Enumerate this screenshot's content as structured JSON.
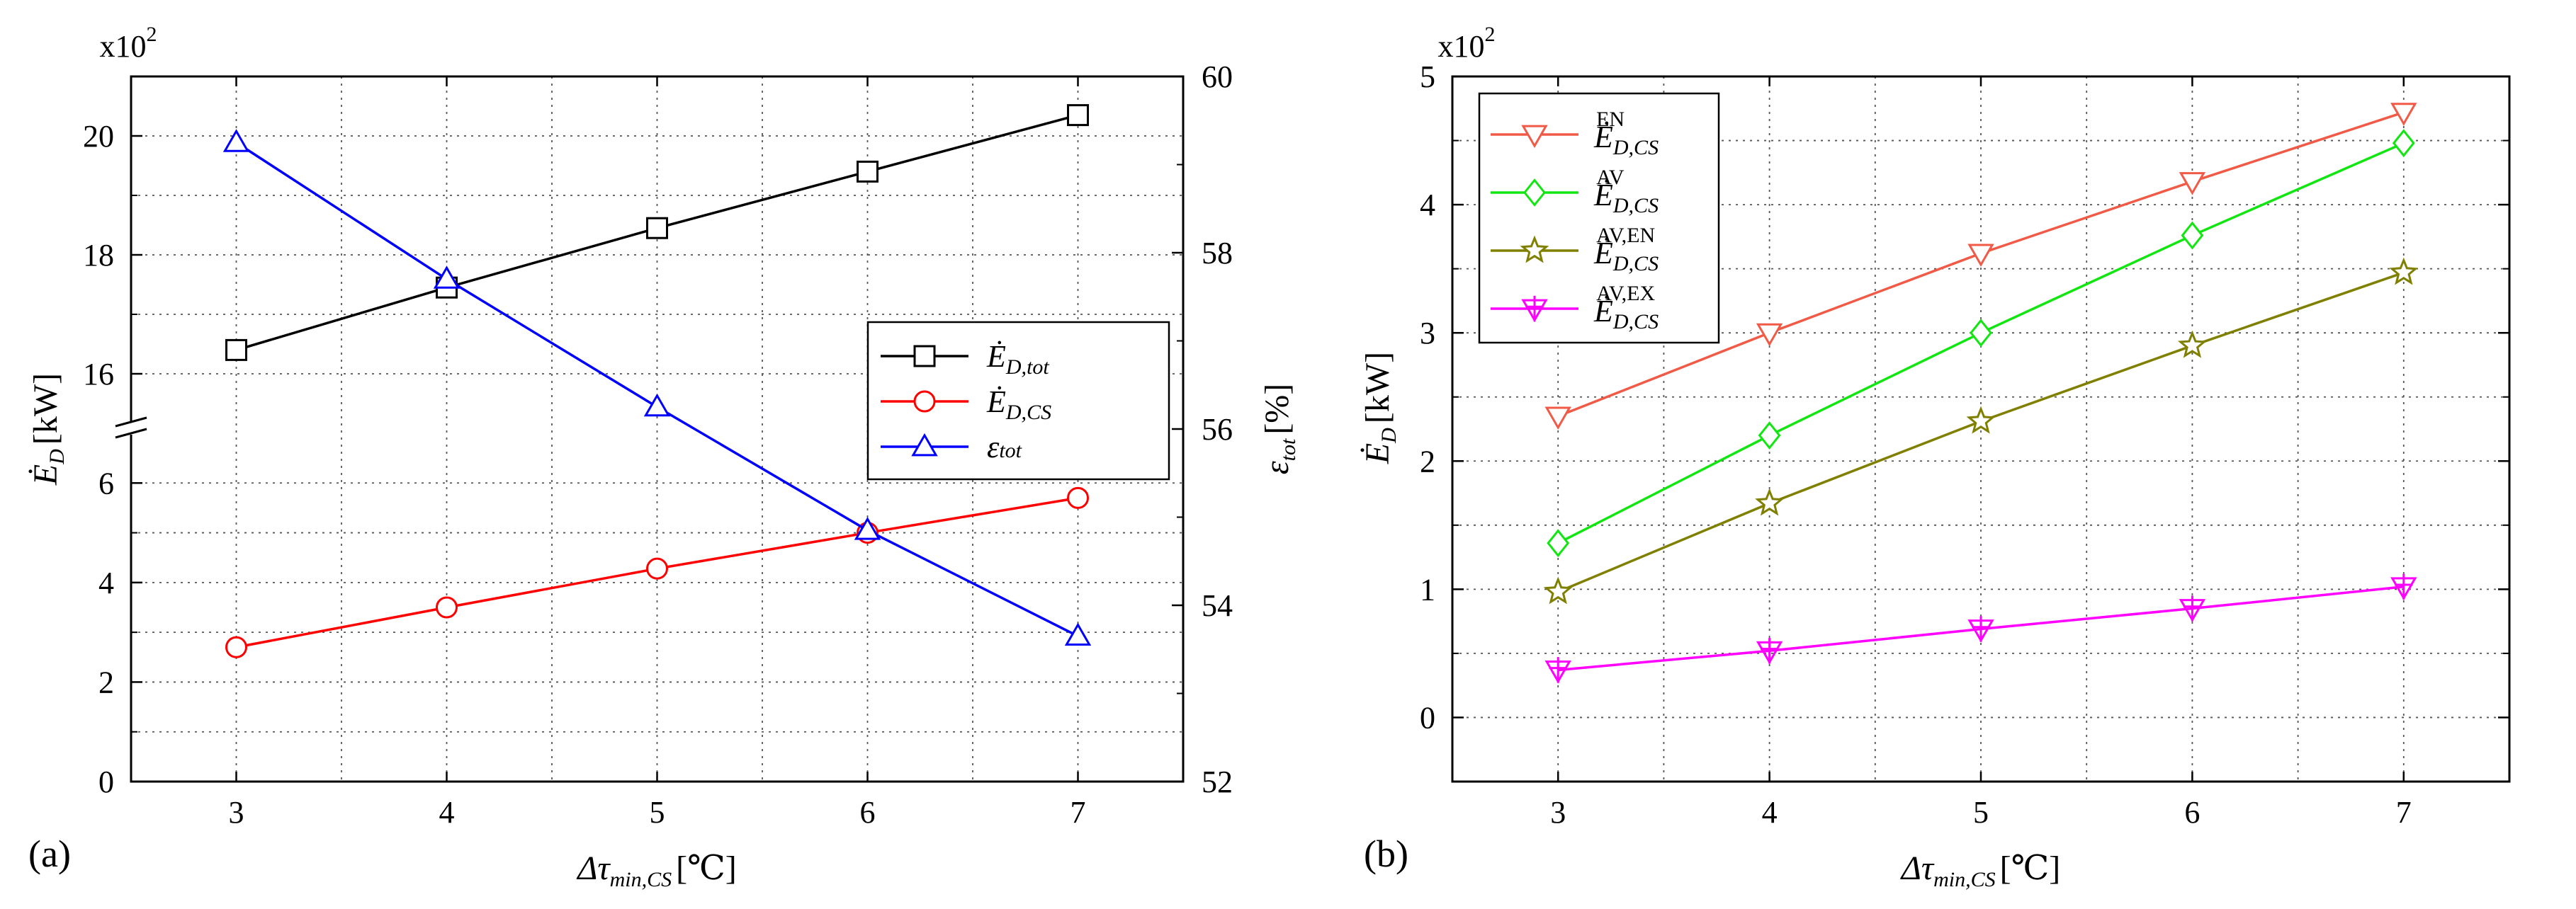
{
  "figure": {
    "panels": [
      "(a)",
      "(b)"
    ]
  },
  "chart_data": [
    {
      "type": "line",
      "panel_label": "(a)",
      "x": [
        3,
        4,
        5,
        6,
        7
      ],
      "x_label": {
        "prefix": "Δτ",
        "subscript": "min,CS",
        "unit": "[℃]"
      },
      "xlim": [
        2.5,
        7.5
      ],
      "xticks": [
        "3",
        "4",
        "5",
        "6",
        "7"
      ],
      "y_left": {
        "label": {
          "base": "Ė",
          "subscript": "D",
          "unit": "[kW]"
        },
        "multiplier": {
          "base": "x10",
          "exp": "2"
        },
        "broken": true,
        "lower_range": [
          0,
          7
        ],
        "upper_range": [
          15,
          21
        ],
        "lower_ticks": [
          "0",
          "2",
          "4",
          "6"
        ],
        "upper_ticks": [
          "16",
          "18",
          "20"
        ]
      },
      "y_right": {
        "label": {
          "base": "ε",
          "subscript": "tot",
          "unit": "[%]"
        },
        "range": [
          52,
          60
        ],
        "ticks": [
          "52",
          "54",
          "56",
          "58",
          "60"
        ]
      },
      "series": [
        {
          "name": "Ė_D,tot",
          "base": "Ė",
          "sub_regular": "D,",
          "sub_italic": "tot",
          "color": "#000000",
          "marker": "square",
          "axis": "left-upper",
          "values": [
            16.4,
            17.45,
            18.45,
            19.4,
            20.35
          ]
        },
        {
          "name": "Ė_D,CS",
          "base": "Ė",
          "sub_regular": "D,",
          "sub_italic": "CS",
          "color": "#ff0000",
          "marker": "circle",
          "axis": "left-lower",
          "values": [
            2.7,
            3.5,
            4.28,
            5.0,
            5.7
          ]
        },
        {
          "name": "ε_tot",
          "base": "ε",
          "sub_regular": "",
          "sub_italic": "tot",
          "color": "#0000ff",
          "marker": "triangle-up",
          "axis": "right",
          "values": [
            59.25,
            57.7,
            56.25,
            54.85,
            53.65
          ]
        }
      ],
      "legend_position": "center-right",
      "grid": true
    },
    {
      "type": "line",
      "panel_label": "(b)",
      "x": [
        3,
        4,
        5,
        6,
        7
      ],
      "x_label": {
        "prefix": "Δτ",
        "subscript": "min,CS",
        "unit": "[℃]"
      },
      "xlim": [
        2.5,
        7.5
      ],
      "xticks": [
        "3",
        "4",
        "5",
        "6",
        "7"
      ],
      "y_left": {
        "label": {
          "base": "Ė",
          "subscript": "D",
          "unit": "[kW]"
        },
        "multiplier": {
          "base": "x10",
          "exp": "2"
        },
        "range": [
          -0.5,
          5
        ],
        "ticks": [
          "0",
          "1",
          "2",
          "3",
          "4",
          "5"
        ]
      },
      "series": [
        {
          "name": "Ė_D,CS^EN",
          "sup": "EN",
          "color": "#f05a46",
          "marker": "triangle-down",
          "values": [
            2.35,
            3.0,
            3.62,
            4.18,
            4.72
          ]
        },
        {
          "name": "Ė_D,CS^AV",
          "sup": "AV",
          "color": "#11e611",
          "marker": "diamond",
          "values": [
            1.36,
            2.2,
            3.0,
            3.76,
            4.48
          ]
        },
        {
          "name": "Ė_D,CS^AV,EN",
          "sup": "AV,EN",
          "color": "#808000",
          "marker": "star",
          "values": [
            0.98,
            1.67,
            2.31,
            2.9,
            3.47
          ]
        },
        {
          "name": "Ė_D,CS^AV,EX",
          "sup": "AV,EX",
          "color": "#ff00ff",
          "marker": "triangle-down-cross",
          "values": [
            0.37,
            0.52,
            0.69,
            0.85,
            1.02
          ]
        }
      ],
      "legend_base": "Ė",
      "legend_sub": "D,CS",
      "legend_position": "top-left",
      "grid": true
    }
  ]
}
